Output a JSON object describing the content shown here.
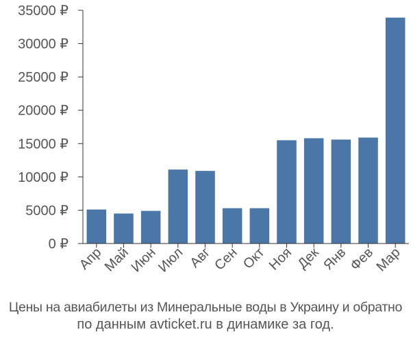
{
  "chart_data": {
    "type": "bar",
    "categories": [
      "Апр",
      "Май",
      "Июн",
      "Июл",
      "Авг",
      "Сен",
      "Окт",
      "Ноя",
      "Дек",
      "Янв",
      "Фев",
      "Мар"
    ],
    "values": [
      5100,
      4500,
      4900,
      11100,
      10900,
      5300,
      5300,
      15500,
      15800,
      15600,
      15900,
      33900
    ],
    "ylim": [
      0,
      35000
    ],
    "yticks": [
      0,
      5000,
      10000,
      15000,
      20000,
      25000,
      30000,
      35000
    ],
    "ytick_labels": [
      "0 ₽",
      "5000 ₽",
      "10000 ₽",
      "15000 ₽",
      "20000 ₽",
      "25000 ₽",
      "30000 ₽",
      "35000 ₽"
    ],
    "bar_color": "#4a76a8",
    "grid": false
  },
  "caption": {
    "line1": "Цены на авиабилеты из Минеральные воды в Украину и обратно",
    "line2": "по данным avticket.ru в динамике за год."
  }
}
